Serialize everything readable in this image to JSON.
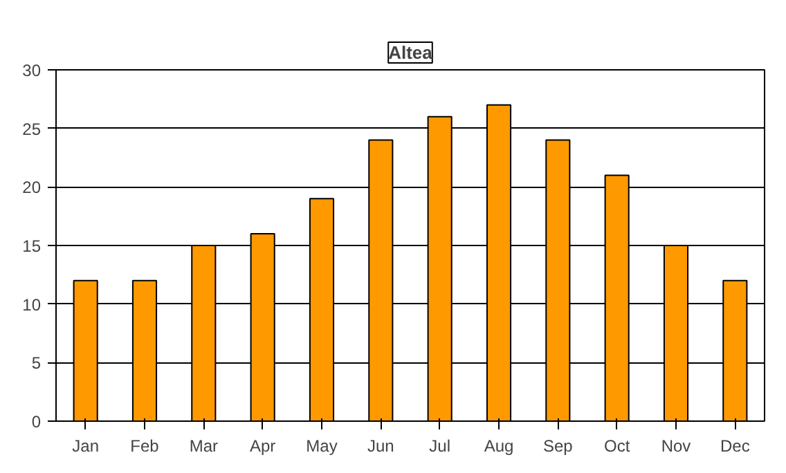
{
  "chart_data": {
    "type": "bar",
    "title": "Altea",
    "categories": [
      "Jan",
      "Feb",
      "Mar",
      "Apr",
      "May",
      "Jun",
      "Jul",
      "Aug",
      "Sep",
      "Oct",
      "Nov",
      "Dec"
    ],
    "values": [
      12,
      12,
      15,
      16,
      19,
      24,
      26,
      27,
      24,
      21,
      15,
      12
    ],
    "color": "#ff9900",
    "ylim": [
      0,
      30
    ],
    "yticks": [
      0,
      5,
      10,
      15,
      20,
      25,
      30
    ],
    "grid": "y"
  }
}
